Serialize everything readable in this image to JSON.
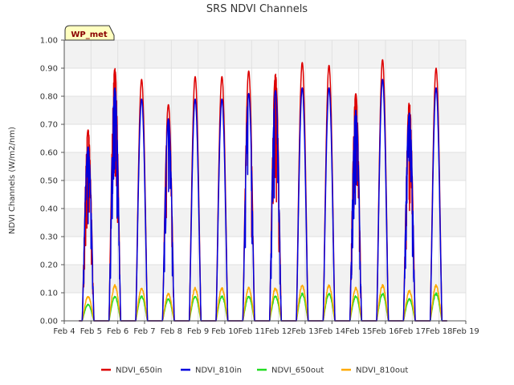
{
  "chart_data": {
    "type": "line",
    "title": "SRS NDVI Channels",
    "xlabel": "",
    "ylabel": "NDVI Channels (W/m2/nm)",
    "station_badge": "WP_met",
    "ylim": [
      0.0,
      1.0
    ],
    "yticks": [
      "0.00",
      "0.10",
      "0.20",
      "0.30",
      "0.40",
      "0.50",
      "0.60",
      "0.70",
      "0.80",
      "0.90",
      "1.00"
    ],
    "xlim": [
      4,
      19
    ],
    "xticks": [
      "Feb 4",
      "Feb 5",
      "Feb 6",
      "Feb 7",
      "Feb 8",
      "Feb 9",
      "Feb 10",
      "Feb 11",
      "Feb 12",
      "Feb 13",
      "Feb 14",
      "Feb 15",
      "Feb 16",
      "Feb 17",
      "Feb 18",
      "Feb 19"
    ],
    "grid": true,
    "legend_position": "bottom",
    "series": [
      {
        "name": "NDVI_650in",
        "color": "#dd0000"
      },
      {
        "name": "NDVI_810in",
        "color": "#0000dd"
      },
      {
        "name": "NDVI_650out",
        "color": "#22dd22"
      },
      {
        "name": "NDVI_810out",
        "color": "#ffaa00"
      }
    ],
    "daily_peaks": [
      {
        "day": 5,
        "NDVI_650in": 0.68,
        "NDVI_810in": 0.62,
        "NDVI_650out": 0.06,
        "NDVI_810out": 0.09
      },
      {
        "day": 6,
        "NDVI_650in": 0.9,
        "NDVI_810in": 0.83,
        "NDVI_650out": 0.09,
        "NDVI_810out": 0.13
      },
      {
        "day": 7,
        "NDVI_650in": 0.86,
        "NDVI_810in": 0.79,
        "NDVI_650out": 0.09,
        "NDVI_810out": 0.12
      },
      {
        "day": 8,
        "NDVI_650in": 0.77,
        "NDVI_810in": 0.72,
        "NDVI_650out": 0.08,
        "NDVI_810out": 0.1
      },
      {
        "day": 9,
        "NDVI_650in": 0.87,
        "NDVI_810in": 0.79,
        "NDVI_650out": 0.09,
        "NDVI_810out": 0.12
      },
      {
        "day": 10,
        "NDVI_650in": 0.87,
        "NDVI_810in": 0.79,
        "NDVI_650out": 0.09,
        "NDVI_810out": 0.12
      },
      {
        "day": 11,
        "NDVI_650in": 0.89,
        "NDVI_810in": 0.81,
        "NDVI_650out": 0.09,
        "NDVI_810out": 0.12
      },
      {
        "day": 12,
        "NDVI_650in": 0.88,
        "NDVI_810in": 0.82,
        "NDVI_650out": 0.09,
        "NDVI_810out": 0.12
      },
      {
        "day": 13,
        "NDVI_650in": 0.92,
        "NDVI_810in": 0.83,
        "NDVI_650out": 0.1,
        "NDVI_810out": 0.13
      },
      {
        "day": 14,
        "NDVI_650in": 0.91,
        "NDVI_810in": 0.83,
        "NDVI_650out": 0.1,
        "NDVI_810out": 0.13
      },
      {
        "day": 15,
        "NDVI_650in": 0.81,
        "NDVI_810in": 0.75,
        "NDVI_650out": 0.09,
        "NDVI_810out": 0.12
      },
      {
        "day": 16,
        "NDVI_650in": 0.93,
        "NDVI_810in": 0.86,
        "NDVI_650out": 0.1,
        "NDVI_810out": 0.13
      },
      {
        "day": 17,
        "NDVI_650in": 0.78,
        "NDVI_810in": 0.74,
        "NDVI_650out": 0.08,
        "NDVI_810out": 0.11
      },
      {
        "day": 18,
        "NDVI_650in": 0.9,
        "NDVI_810in": 0.83,
        "NDVI_650out": 0.1,
        "NDVI_810out": 0.13
      }
    ]
  }
}
